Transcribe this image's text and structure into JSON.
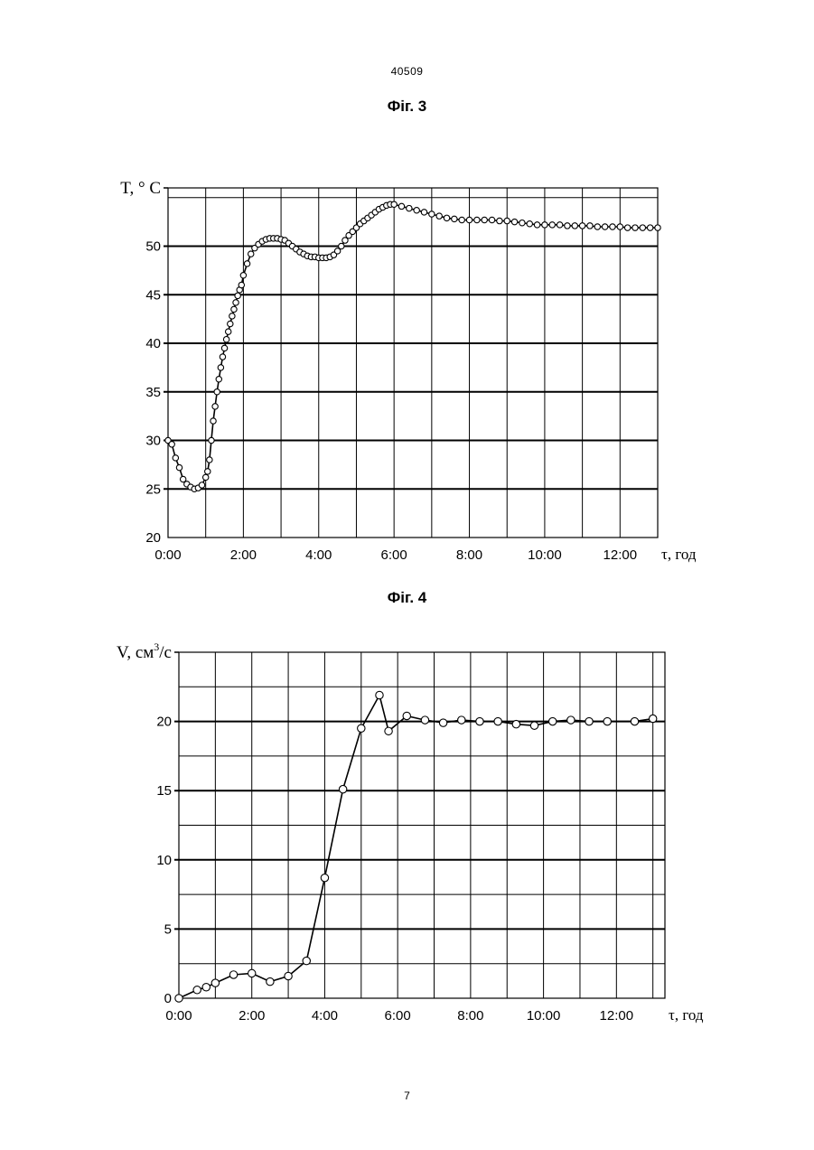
{
  "page": {
    "doc_number": "40509",
    "page_number": "7"
  },
  "chart_data": [
    {
      "type": "line",
      "title": "Фіг. 3",
      "ylabel": "T, ° C",
      "xlabel": "τ, год",
      "x_unit": "hours",
      "ylim": [
        20,
        56
      ],
      "xlim": [
        0,
        13
      ],
      "yticks": [
        20,
        25,
        30,
        35,
        40,
        45,
        50
      ],
      "xtick_labels": [
        "0:00",
        "2:00",
        "4:00",
        "6:00",
        "8:00",
        "10:00",
        "12:00"
      ],
      "grid": true,
      "marker": "open-circle",
      "x": [
        0,
        0.1,
        0.2,
        0.3,
        0.4,
        0.5,
        0.6,
        0.7,
        0.8,
        0.9,
        1.0,
        1.05,
        1.1,
        1.15,
        1.2,
        1.25,
        1.3,
        1.35,
        1.4,
        1.45,
        1.5,
        1.55,
        1.6,
        1.65,
        1.7,
        1.75,
        1.8,
        1.85,
        1.9,
        1.95,
        2.0,
        2.1,
        2.2,
        2.3,
        2.4,
        2.5,
        2.6,
        2.7,
        2.8,
        2.9,
        3.0,
        3.1,
        3.2,
        3.3,
        3.4,
        3.5,
        3.6,
        3.7,
        3.8,
        3.9,
        4.0,
        4.1,
        4.2,
        4.3,
        4.4,
        4.5,
        4.6,
        4.7,
        4.8,
        4.9,
        5.0,
        5.1,
        5.2,
        5.3,
        5.4,
        5.5,
        5.6,
        5.7,
        5.8,
        5.9,
        6.0,
        6.2,
        6.4,
        6.6,
        6.8,
        7.0,
        7.2,
        7.4,
        7.6,
        7.8,
        8.0,
        8.2,
        8.4,
        8.6,
        8.8,
        9.0,
        9.2,
        9.4,
        9.6,
        9.8,
        10.0,
        10.2,
        10.4,
        10.6,
        10.8,
        11.0,
        11.2,
        11.4,
        11.6,
        11.8,
        12.0,
        12.2,
        12.4,
        12.6,
        12.8,
        13.0
      ],
      "y": [
        30.0,
        29.6,
        28.2,
        27.2,
        26.0,
        25.5,
        25.2,
        25.0,
        25.1,
        25.4,
        26.2,
        26.8,
        28.0,
        30.0,
        32.0,
        33.5,
        35.0,
        36.3,
        37.5,
        38.6,
        39.5,
        40.4,
        41.2,
        42.0,
        42.8,
        43.5,
        44.2,
        44.9,
        45.5,
        46.0,
        47.0,
        48.2,
        49.2,
        49.8,
        50.2,
        50.5,
        50.7,
        50.8,
        50.8,
        50.8,
        50.7,
        50.6,
        50.3,
        50.0,
        49.7,
        49.4,
        49.2,
        49.0,
        48.9,
        48.9,
        48.8,
        48.8,
        48.8,
        48.9,
        49.1,
        49.5,
        50.0,
        50.6,
        51.1,
        51.5,
        51.9,
        52.3,
        52.6,
        52.9,
        53.2,
        53.5,
        53.8,
        54.0,
        54.2,
        54.3,
        54.3,
        54.1,
        53.9,
        53.7,
        53.5,
        53.3,
        53.1,
        52.9,
        52.8,
        52.7,
        52.7,
        52.7,
        52.7,
        52.7,
        52.6,
        52.6,
        52.5,
        52.4,
        52.3,
        52.2,
        52.2,
        52.2,
        52.2,
        52.1,
        52.1,
        52.1,
        52.1,
        52.0,
        52.0,
        52.0,
        52.0,
        51.9,
        51.9,
        51.9,
        51.9,
        51.9
      ]
    },
    {
      "type": "line",
      "title": "Фіг. 4",
      "ylabel": "V, см",
      "ylabel_sup": "3",
      "ylabel_suffix": "/с",
      "xlabel": "τ, год",
      "x_unit": "hours",
      "ylim": [
        0,
        25
      ],
      "xlim": [
        0,
        13.33
      ],
      "yticks": [
        0,
        5,
        10,
        15,
        20
      ],
      "xtick_labels": [
        "0:00",
        "2:00",
        "4:00",
        "6:00",
        "8:00",
        "10:00",
        "12:00"
      ],
      "grid": true,
      "marker": "open-circle",
      "x": [
        0,
        0.5,
        0.75,
        1.0,
        1.5,
        2.0,
        2.5,
        3.0,
        3.5,
        4.0,
        4.5,
        5.0,
        5.5,
        5.75,
        6.25,
        6.75,
        7.25,
        7.75,
        8.25,
        8.75,
        9.25,
        9.75,
        10.25,
        10.75,
        11.25,
        11.75,
        12.5,
        13.0
      ],
      "y": [
        0,
        0.6,
        0.8,
        1.1,
        1.7,
        1.8,
        1.2,
        1.6,
        2.7,
        8.7,
        15.1,
        19.5,
        21.9,
        19.3,
        20.4,
        20.1,
        19.9,
        20.1,
        20.0,
        20.0,
        19.8,
        19.7,
        20.0,
        20.1,
        20.0,
        20.0,
        20.0,
        20.2
      ]
    }
  ]
}
